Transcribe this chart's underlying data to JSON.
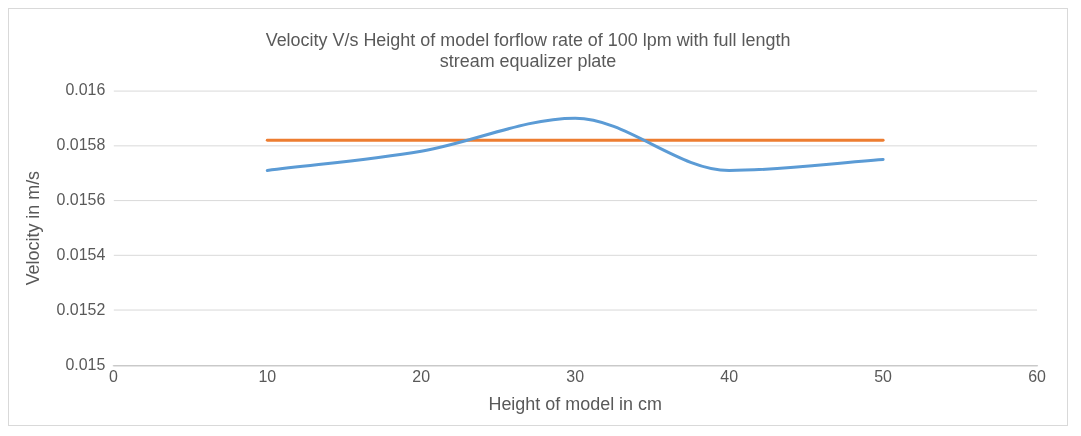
{
  "chart_data": {
    "type": "line",
    "title": "Velocity V/s Height of model forflow rate of 100 lpm with full length stream equalizer plate",
    "xlabel": "Height of model in cm",
    "ylabel": "Velocity in m/s",
    "x": [
      10,
      20,
      30,
      40,
      50
    ],
    "series": [
      {
        "color": "#5b9bd5",
        "values": [
          0.01571,
          0.01578,
          0.0159,
          0.01571,
          0.01575
        ]
      },
      {
        "color": "#ed7d31",
        "values": [
          0.01582,
          0.01582,
          0.01582,
          0.01582,
          0.01582
        ]
      }
    ],
    "xlim": [
      0,
      60
    ],
    "xticks": [
      0,
      10,
      20,
      30,
      40,
      50,
      60
    ],
    "ylim": [
      0.015,
      0.016
    ],
    "yticks": [
      0.015,
      0.0152,
      0.0154,
      0.0156,
      0.0158,
      0.016
    ],
    "grid": "y",
    "legend": false,
    "marker": "none",
    "line_style": "solid"
  }
}
